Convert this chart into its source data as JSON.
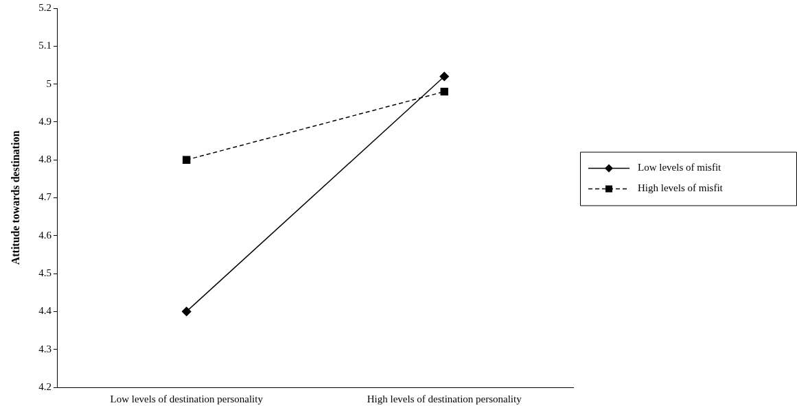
{
  "chart_data": {
    "type": "line",
    "ylabel": "Attitude towards destination",
    "categories": [
      "Low levels of destination personality",
      "High levels of destination personality"
    ],
    "series": [
      {
        "name": "Low levels of misfit",
        "color": "#000000",
        "values": [
          4.4,
          5.02
        ],
        "marker": "diamond",
        "line_style": "solid"
      },
      {
        "name": "High levels of misfit",
        "color": "#000000",
        "values": [
          4.8,
          4.98
        ],
        "marker": "square",
        "line_style": "dashed"
      }
    ],
    "ylim": [
      4.2,
      5.2
    ],
    "yticks": [
      4.2,
      4.3,
      4.4,
      4.5,
      4.6,
      4.7,
      4.8,
      4.9,
      5,
      5.1,
      5.2
    ],
    "grid": false,
    "legend": "right"
  }
}
